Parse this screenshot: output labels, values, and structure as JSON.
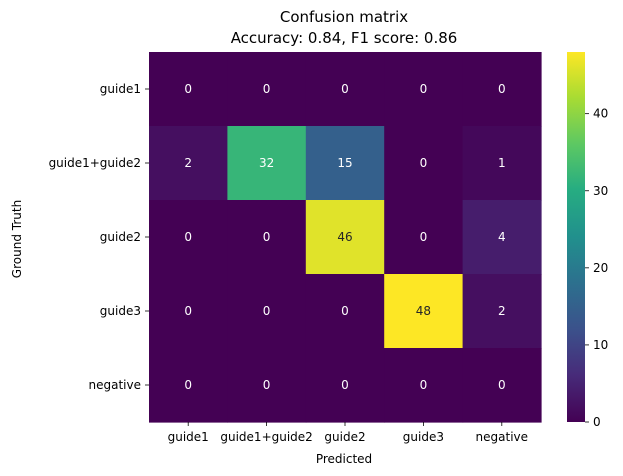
{
  "chart_data": {
    "type": "heatmap",
    "title_line1": "Confusion matrix",
    "title_line2": "Accuracy: 0.84, F1 score: 0.86",
    "xlabel": "Predicted",
    "ylabel": "Ground Truth",
    "x_categories": [
      "guide1",
      "guide1+guide2",
      "guide2",
      "guide3",
      "negative"
    ],
    "y_categories": [
      "guide1",
      "guide1+guide2",
      "guide2",
      "guide3",
      "negative"
    ],
    "values": [
      [
        0,
        0,
        0,
        0,
        0
      ],
      [
        2,
        32,
        15,
        0,
        1
      ],
      [
        0,
        0,
        46,
        0,
        4
      ],
      [
        0,
        0,
        0,
        48,
        2
      ],
      [
        0,
        0,
        0,
        0,
        0
      ]
    ],
    "colormap": "viridis",
    "vmin": 0,
    "vmax": 48,
    "colorbar_ticks": [
      0,
      10,
      20,
      30,
      40
    ],
    "grid": false
  }
}
